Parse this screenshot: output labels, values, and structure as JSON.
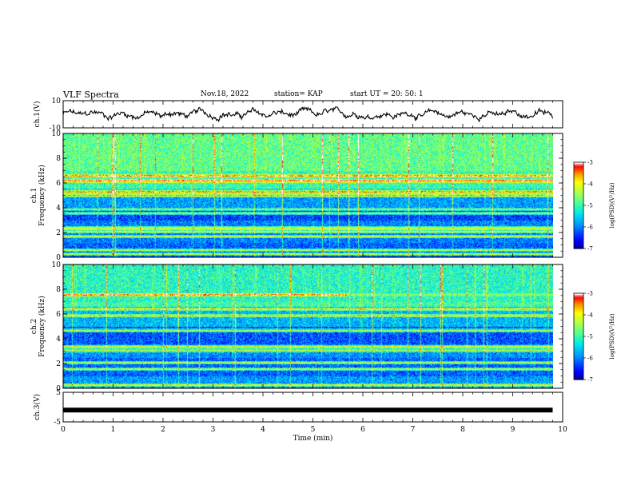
{
  "header": {
    "title": "VLF Spectra",
    "date": "Nov.18, 2022",
    "station": "station= KAP",
    "start": "start UT =  20: 50: 1"
  },
  "chart_data": {
    "type": "spectrogram",
    "time_axis": {
      "label": "Time (min)",
      "range": [
        0,
        10
      ],
      "ticks": [
        "0",
        "1",
        "2",
        "3",
        "4",
        "5",
        "6",
        "7",
        "8",
        "9",
        "10"
      ],
      "data_end_min": 9.8
    },
    "panels": [
      {
        "id": "ch1-waveform",
        "type": "line",
        "ylabel": "ch.1(V)",
        "ylim": [
          -10,
          10
        ],
        "yticks": [
          "10",
          "-10"
        ],
        "approx_range": [
          -6,
          6
        ]
      },
      {
        "id": "ch1-spectrogram",
        "type": "heatmap",
        "ylabel": "ch.1\nFrequency (kHz)",
        "ylim": [
          0,
          10
        ],
        "yticks": [
          "0",
          "2",
          "4",
          "6",
          "8",
          "10"
        ],
        "dominant_bands_khz": [
          0.3,
          0.6,
          1.7,
          2.1,
          2.3,
          2.4,
          3.6,
          3.9,
          5.0,
          5.3,
          6.2,
          6.6
        ],
        "colorbar": {
          "label": "log(PSD)(V²/Hz)",
          "range": [
            -7,
            -3
          ],
          "ticks": [
            "-3",
            "-4",
            "-5",
            "-6",
            "-7"
          ],
          "colormap": [
            "#00007f",
            "#0000ff",
            "#00a0ff",
            "#00ffff",
            "#60ff90",
            "#c0ff40",
            "#ffff00",
            "#ff8000",
            "#ff0000",
            "#ffffff"
          ]
        }
      },
      {
        "id": "ch2-spectrogram",
        "type": "heatmap",
        "ylabel": "ch.2\nFrequency (kHz)",
        "ylim": [
          0,
          10
        ],
        "yticks": [
          "0",
          "2",
          "4",
          "6",
          "8",
          "10"
        ],
        "dominant_bands_khz": [
          0.3,
          1.6,
          2.1,
          3.1,
          3.4,
          4.7,
          5.9,
          6.4,
          7.6
        ],
        "colorbar": {
          "label": "log(PSD)(V²/Hz)",
          "range": [
            -7,
            -3
          ],
          "ticks": [
            "-3",
            "-4",
            "-5",
            "-6",
            "-7"
          ],
          "colormap": [
            "#00007f",
            "#0000ff",
            "#00a0ff",
            "#00ffff",
            "#60ff90",
            "#c0ff40",
            "#ffff00",
            "#ff8000",
            "#ff0000",
            "#ffffff"
          ]
        }
      },
      {
        "id": "ch3-waveform",
        "type": "line",
        "ylabel": "ch.3(V)",
        "ylim": [
          -5,
          5
        ],
        "yticks": [
          "5",
          "-5"
        ],
        "approx_value": -1
      }
    ]
  }
}
